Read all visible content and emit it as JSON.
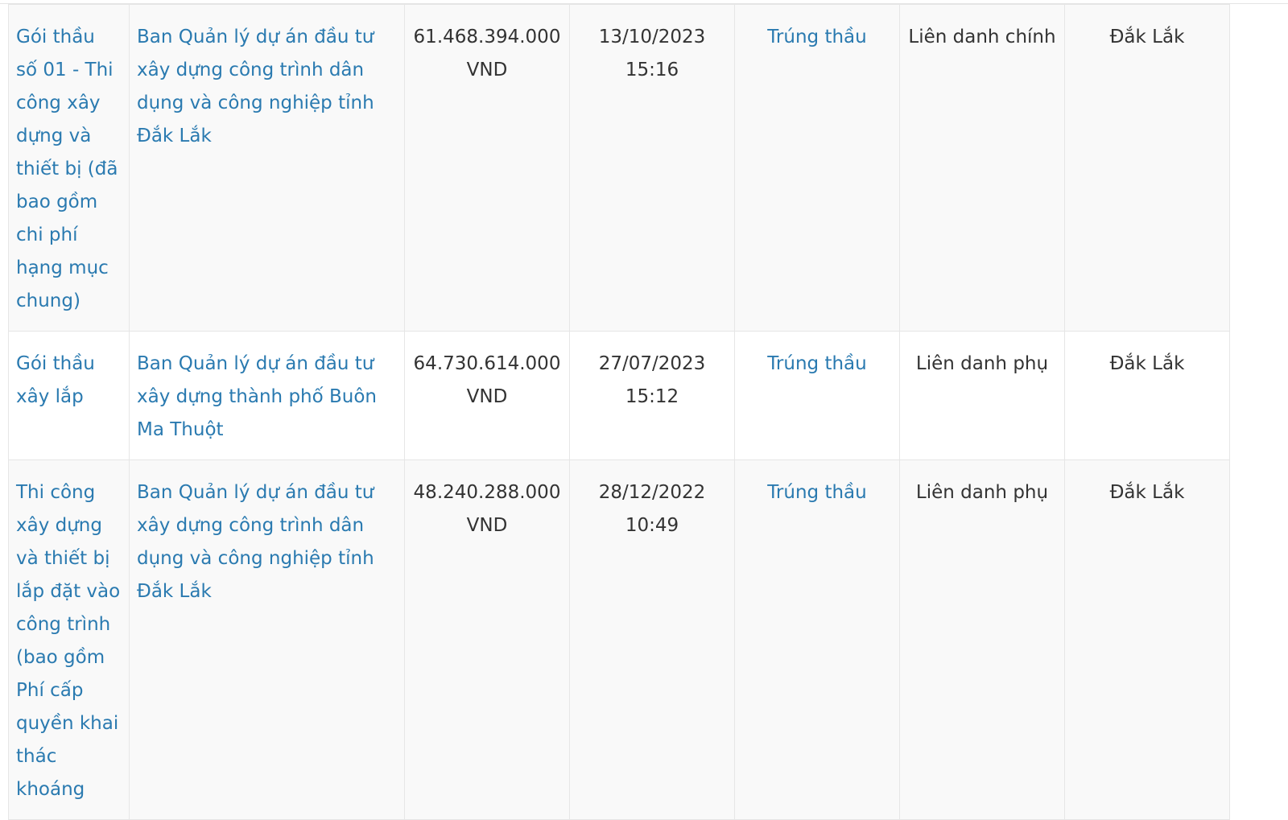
{
  "colors": {
    "link": "#2a7ab0",
    "text": "#333333",
    "row_alt": "#f9f9f9",
    "border": "#e6e6e6"
  },
  "rows": [
    {
      "package": "Gói thầu số 01 - Thi công xây dựng và thiết bị (đã bao gồm chi phí hạng mục chung)",
      "investor": "Ban Quản lý dự án đầu tư xây dựng công trình dân dụng và công nghiệp tỉnh Đắk Lắk",
      "value": "61.468.394.000 VND",
      "date": "13/10/2023",
      "time": "15:16",
      "result": "Trúng thầu",
      "role": "Liên danh chính",
      "province": "Đắk Lắk"
    },
    {
      "package": "Gói thầu xây lắp",
      "investor": "Ban Quản lý dự án đầu tư xây dựng thành phố Buôn Ma Thuột",
      "value": "64.730.614.000 VND",
      "date": "27/07/2023",
      "time": "15:12",
      "result": "Trúng thầu",
      "role": "Liên danh phụ",
      "province": "Đắk Lắk"
    },
    {
      "package": "Thi công xây dựng và thiết bị lắp đặt vào công trình (bao gồm Phí cấp quyền khai thác khoáng",
      "investor": "Ban Quản lý dự án đầu tư xây dựng công trình dân dụng và công nghiệp tỉnh Đắk Lắk",
      "value": "48.240.288.000 VND",
      "date": "28/12/2022",
      "time": "10:49",
      "result": "Trúng thầu",
      "role": "Liên danh phụ",
      "province": "Đắk Lắk"
    }
  ]
}
